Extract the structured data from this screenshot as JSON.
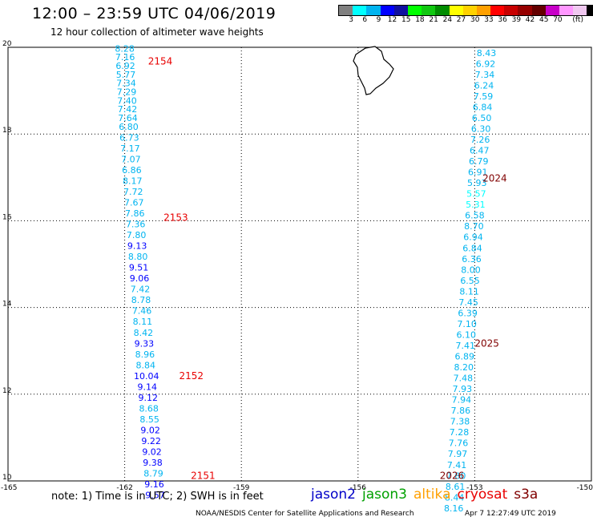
{
  "header": {
    "title": "12:00 – 23:59 UTC 04/06/2019",
    "subtitle": "12 hour collection of altimeter wave heights"
  },
  "color_scale": {
    "unit": "(ft)",
    "swatches": [
      "#808080",
      "#00ffff",
      "#00b4f0",
      "#0000ff",
      "#1010a0",
      "#00ff00",
      "#10c810",
      "#008c00",
      "#ffff00",
      "#ffd200",
      "#ffa000",
      "#ff0000",
      "#c80000",
      "#960000",
      "#640000",
      "#c800c8",
      "#ff96ff",
      "#f0c8f0",
      "#000000"
    ],
    "labels": [
      "3",
      "6",
      "9",
      "12",
      "15",
      "18",
      "21",
      "24",
      "27",
      "30",
      "33",
      "36",
      "39",
      "42",
      "45",
      "70"
    ]
  },
  "axes": {
    "x_ticks": [
      "-165",
      "-162",
      "-159",
      "-156",
      "-153",
      "-150"
    ],
    "y_ticks": [
      "10",
      "12",
      "14",
      "16",
      "18",
      "20"
    ]
  },
  "passes": [
    {
      "label": "2151",
      "label_color": "#e80000",
      "label_lon": -160.3,
      "label_lat": 10.05,
      "points": [
        {
          "lon": -162.0,
          "lat": 19.9,
          "value": "8.28",
          "color": "#00b4f0"
        },
        {
          "lon": -161.99,
          "lat": 19.7,
          "value": "7.16",
          "color": "#00b4f0"
        },
        {
          "lon": -161.98,
          "lat": 19.5,
          "value": "6.92",
          "color": "#00b4f0"
        },
        {
          "lon": -161.97,
          "lat": 19.3,
          "value": "5.77",
          "color": "#00b4f0"
        },
        {
          "lon": -161.96,
          "lat": 19.1,
          "value": "7.34",
          "color": "#00b4f0"
        },
        {
          "lon": -161.95,
          "lat": 18.9,
          "value": "7.29",
          "color": "#00b4f0"
        },
        {
          "lon": -161.94,
          "lat": 18.7,
          "value": "7.40",
          "color": "#00b4f0"
        },
        {
          "lon": -161.93,
          "lat": 18.5,
          "value": "7.42",
          "color": "#00b4f0"
        },
        {
          "lon": -161.92,
          "lat": 18.3,
          "value": "7.64",
          "color": "#00b4f0"
        },
        {
          "lon": -161.9,
          "lat": 18.1,
          "value": "6.80",
          "color": "#00b4f0"
        },
        {
          "lon": -161.88,
          "lat": 17.85,
          "value": "6.73",
          "color": "#00b4f0"
        },
        {
          "lon": -161.86,
          "lat": 17.6,
          "value": "7.17",
          "color": "#00b4f0"
        },
        {
          "lon": -161.84,
          "lat": 17.35,
          "value": "7.07",
          "color": "#00b4f0"
        },
        {
          "lon": -161.82,
          "lat": 17.1,
          "value": "6.86",
          "color": "#00b4f0"
        },
        {
          "lon": -161.8,
          "lat": 16.85,
          "value": "8.17",
          "color": "#00b4f0"
        },
        {
          "lon": -161.78,
          "lat": 16.6,
          "value": "7.72",
          "color": "#00b4f0"
        },
        {
          "lon": -161.76,
          "lat": 16.35,
          "value": "7.67",
          "color": "#00b4f0"
        },
        {
          "lon": -161.74,
          "lat": 16.1,
          "value": "7.86",
          "color": "#00b4f0"
        },
        {
          "lon": -161.72,
          "lat": 15.85,
          "value": "7.36",
          "color": "#00b4f0"
        },
        {
          "lon": -161.7,
          "lat": 15.6,
          "value": "7.80",
          "color": "#00b4f0"
        },
        {
          "lon": -161.68,
          "lat": 15.35,
          "value": "9.13",
          "color": "#0000ff"
        },
        {
          "lon": -161.66,
          "lat": 15.1,
          "value": "8.80",
          "color": "#00b4f0"
        },
        {
          "lon": -161.64,
          "lat": 14.85,
          "value": "9.51",
          "color": "#0000ff"
        },
        {
          "lon": -161.62,
          "lat": 14.6,
          "value": "9.06",
          "color": "#0000ff"
        },
        {
          "lon": -161.6,
          "lat": 14.35,
          "value": "7.42",
          "color": "#00b4f0"
        },
        {
          "lon": -161.58,
          "lat": 14.1,
          "value": "8.78",
          "color": "#00b4f0"
        },
        {
          "lon": -161.56,
          "lat": 13.85,
          "value": "7.46",
          "color": "#00b4f0"
        },
        {
          "lon": -161.54,
          "lat": 13.6,
          "value": "8.11",
          "color": "#00b4f0"
        },
        {
          "lon": -161.52,
          "lat": 13.35,
          "value": "8.42",
          "color": "#00b4f0"
        },
        {
          "lon": -161.5,
          "lat": 13.1,
          "value": "9.33",
          "color": "#0000ff"
        },
        {
          "lon": -161.48,
          "lat": 12.85,
          "value": "8.96",
          "color": "#00b4f0"
        },
        {
          "lon": -161.46,
          "lat": 12.6,
          "value": "8.84",
          "color": "#00b4f0"
        },
        {
          "lon": -161.44,
          "lat": 12.35,
          "value": "10.04",
          "color": "#0000ff"
        },
        {
          "lon": -161.42,
          "lat": 12.1,
          "value": "9.14",
          "color": "#0000ff"
        },
        {
          "lon": -161.4,
          "lat": 11.85,
          "value": "9.12",
          "color": "#0000ff"
        },
        {
          "lon": -161.38,
          "lat": 11.6,
          "value": "8.68",
          "color": "#00b4f0"
        },
        {
          "lon": -161.36,
          "lat": 11.35,
          "value": "8.55",
          "color": "#00b4f0"
        },
        {
          "lon": -161.34,
          "lat": 11.1,
          "value": "9.02",
          "color": "#0000ff"
        },
        {
          "lon": -161.32,
          "lat": 10.85,
          "value": "9.22",
          "color": "#0000ff"
        },
        {
          "lon": -161.3,
          "lat": 10.6,
          "value": "9.02",
          "color": "#0000ff"
        },
        {
          "lon": -161.28,
          "lat": 10.35,
          "value": "9.38",
          "color": "#0000ff"
        },
        {
          "lon": -161.26,
          "lat": 10.1,
          "value": "8.79",
          "color": "#00b4f0"
        },
        {
          "lon": -161.24,
          "lat": 9.85,
          "value": "9.16",
          "color": "#0000ff"
        },
        {
          "lon": -161.22,
          "lat": 9.6,
          "value": "9.57",
          "color": "#0000ff"
        }
      ]
    },
    {
      "label": "2152",
      "label_color": "#e80000",
      "label_lon": -160.6,
      "label_lat": 12.35,
      "points": []
    },
    {
      "label": "2153",
      "label_color": "#e80000",
      "label_lon": -161.0,
      "label_lat": 16.0,
      "points": []
    },
    {
      "label": "2154",
      "label_color": "#e80000",
      "label_lon": -161.4,
      "label_lat": 19.6,
      "points": []
    },
    {
      "label": "2024",
      "label_color": "#800000",
      "label_lon": -152.8,
      "label_lat": 16.9,
      "points": [
        {
          "lon": -152.7,
          "lat": 19.8,
          "value": "8.43",
          "color": "#00b4f0"
        },
        {
          "lon": -152.72,
          "lat": 19.55,
          "value": "6.92",
          "color": "#00b4f0"
        },
        {
          "lon": -152.74,
          "lat": 19.3,
          "value": "7.34",
          "color": "#00b4f0"
        },
        {
          "lon": -152.76,
          "lat": 19.05,
          "value": "6.24",
          "color": "#00b4f0"
        },
        {
          "lon": -152.78,
          "lat": 18.8,
          "value": "7.59",
          "color": "#00b4f0"
        },
        {
          "lon": -152.8,
          "lat": 18.55,
          "value": "6.84",
          "color": "#00b4f0"
        },
        {
          "lon": -152.82,
          "lat": 18.3,
          "value": "6.50",
          "color": "#00b4f0"
        },
        {
          "lon": -152.84,
          "lat": 18.05,
          "value": "6.30",
          "color": "#00b4f0"
        },
        {
          "lon": -152.86,
          "lat": 17.8,
          "value": "7.26",
          "color": "#00b4f0"
        },
        {
          "lon": -152.88,
          "lat": 17.55,
          "value": "6.47",
          "color": "#00b4f0"
        },
        {
          "lon": -152.9,
          "lat": 17.3,
          "value": "6.79",
          "color": "#00b4f0"
        },
        {
          "lon": -152.92,
          "lat": 17.05,
          "value": "6.91",
          "color": "#00b4f0"
        },
        {
          "lon": -152.94,
          "lat": 16.8,
          "value": "5.93",
          "color": "#00b4f0"
        },
        {
          "lon": -152.96,
          "lat": 16.55,
          "value": "5.57",
          "color": "#00ffff"
        },
        {
          "lon": -152.98,
          "lat": 16.3,
          "value": "5.31",
          "color": "#00ffff"
        },
        {
          "lon": -153.0,
          "lat": 16.05,
          "value": "6.58",
          "color": "#00b4f0"
        },
        {
          "lon": -153.02,
          "lat": 15.8,
          "value": "8.70",
          "color": "#00b4f0"
        },
        {
          "lon": -153.04,
          "lat": 15.55,
          "value": "6.94",
          "color": "#00b4f0"
        },
        {
          "lon": -153.06,
          "lat": 15.3,
          "value": "6.84",
          "color": "#00b4f0"
        },
        {
          "lon": -153.08,
          "lat": 15.05,
          "value": "6.36",
          "color": "#00b4f0"
        },
        {
          "lon": -153.1,
          "lat": 14.8,
          "value": "8.00",
          "color": "#00b4f0"
        },
        {
          "lon": -153.12,
          "lat": 14.55,
          "value": "6.55",
          "color": "#00b4f0"
        },
        {
          "lon": -153.14,
          "lat": 14.3,
          "value": "8.11",
          "color": "#00b4f0"
        },
        {
          "lon": -153.16,
          "lat": 14.05,
          "value": "7.45",
          "color": "#00b4f0"
        },
        {
          "lon": -153.18,
          "lat": 13.8,
          "value": "6.39",
          "color": "#00b4f0"
        },
        {
          "lon": -153.2,
          "lat": 13.55,
          "value": "7.10",
          "color": "#00b4f0"
        }
      ]
    },
    {
      "label": "2025",
      "label_color": "#800000",
      "label_lon": -153.0,
      "label_lat": 13.1,
      "points": [
        {
          "lon": -153.22,
          "lat": 13.3,
          "value": "6.10",
          "color": "#00b4f0"
        },
        {
          "lon": -153.24,
          "lat": 13.05,
          "value": "7.41",
          "color": "#00b4f0"
        },
        {
          "lon": -153.26,
          "lat": 12.8,
          "value": "6.89",
          "color": "#00b4f0"
        },
        {
          "lon": -153.28,
          "lat": 12.55,
          "value": "8.20",
          "color": "#00b4f0"
        },
        {
          "lon": -153.3,
          "lat": 12.3,
          "value": "7.48",
          "color": "#00b4f0"
        },
        {
          "lon": -153.32,
          "lat": 12.05,
          "value": "7.93",
          "color": "#00b4f0"
        },
        {
          "lon": -153.34,
          "lat": 11.8,
          "value": "7.94",
          "color": "#00b4f0"
        },
        {
          "lon": -153.36,
          "lat": 11.55,
          "value": "7.86",
          "color": "#00b4f0"
        },
        {
          "lon": -153.38,
          "lat": 11.3,
          "value": "7.38",
          "color": "#00b4f0"
        },
        {
          "lon": -153.4,
          "lat": 11.05,
          "value": "7.28",
          "color": "#00b4f0"
        },
        {
          "lon": -153.42,
          "lat": 10.8,
          "value": "7.76",
          "color": "#00b4f0"
        },
        {
          "lon": -153.44,
          "lat": 10.55,
          "value": "7.97",
          "color": "#00b4f0"
        },
        {
          "lon": -153.46,
          "lat": 10.3,
          "value": "7.41",
          "color": "#00b4f0"
        },
        {
          "lon": -153.48,
          "lat": 10.05,
          "value": "7.80",
          "color": "#00b4f0"
        },
        {
          "lon": -153.5,
          "lat": 9.8,
          "value": "8.61",
          "color": "#00b4f0"
        },
        {
          "lon": -153.52,
          "lat": 9.55,
          "value": "8.44",
          "color": "#00b4f0"
        },
        {
          "lon": -153.54,
          "lat": 9.3,
          "value": "8.16",
          "color": "#00b4f0"
        }
      ]
    },
    {
      "label": "2026",
      "label_color": "#800000",
      "label_lon": -153.9,
      "label_lat": 10.05,
      "points": []
    }
  ],
  "note": "note: 1) Time is in UTC; 2) SWH is in feet",
  "legend": [
    {
      "name": "jason2",
      "color": "#0000c8"
    },
    {
      "name": "jason3",
      "color": "#00a000"
    },
    {
      "name": "altika",
      "color": "#ffa000"
    },
    {
      "name": "cryosat",
      "color": "#e80000"
    },
    {
      "name": "s3a",
      "color": "#800000"
    }
  ],
  "footer": {
    "center": "NOAA/NESDIS Center for Satellite Applications and Research",
    "timestamp": "Apr  7 12:27:49 UTC 2019"
  }
}
